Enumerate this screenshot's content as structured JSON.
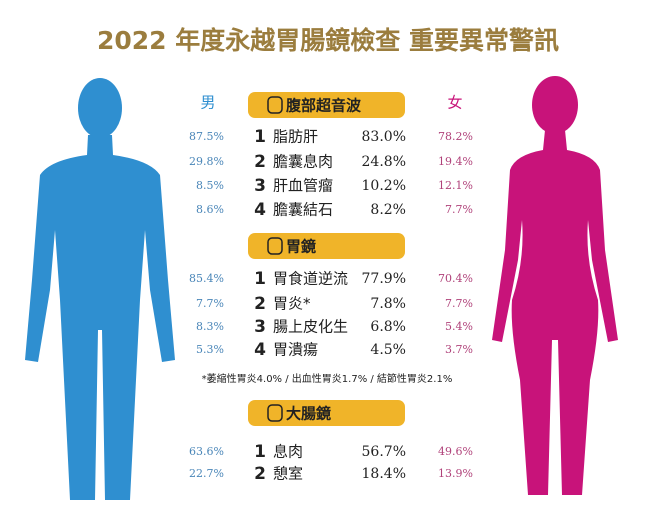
{
  "title": "2022 年度永越胃腸鏡檢查 重要異常警訊",
  "male_label": "男",
  "female_label": "女",
  "sections": [
    {
      "title": "腹部超音波",
      "rows": [
        {
          "rank": "1",
          "name": "脂肪肝",
          "total": "83.0%",
          "male": "87.5%",
          "female": "78.2%"
        },
        {
          "rank": "2",
          "name": "膽囊息肉",
          "total": "24.8%",
          "male": "29.8%",
          "female": "19.4%"
        },
        {
          "rank": "3",
          "name": "肝血管瘤",
          "total": "10.2%",
          "male": "8.5%",
          "female": "12.1%"
        },
        {
          "rank": "4",
          "name": "膽囊結石",
          "total": "8.2%",
          "male": "8.6%",
          "female": "7.7%"
        }
      ]
    },
    {
      "title": "胃鏡",
      "rows": [
        {
          "rank": "1",
          "name": "胃食道逆流",
          "total": "77.9%",
          "male": "85.4%",
          "female": "70.4%"
        },
        {
          "rank": "2",
          "name": "胃炎*",
          "total": "7.8%",
          "male": "7.7%",
          "female": "7.7%"
        },
        {
          "rank": "3",
          "name": "腸上皮化生",
          "total": "6.8%",
          "male": "8.3%",
          "female": "5.4%"
        },
        {
          "rank": "4",
          "name": "胃潰瘍",
          "total": "4.5%",
          "male": "5.3%",
          "female": "3.7%"
        }
      ],
      "note": "*萎縮性胃炎4.0% / 出血性胃炎1.7% / 結節性胃炎2.1%"
    },
    {
      "title": "大腸鏡",
      "rows": [
        {
          "rank": "1",
          "name": "息肉",
          "total": "56.7%",
          "male": "63.6%",
          "female": "49.6%"
        },
        {
          "rank": "2",
          "name": "憩室",
          "total": "18.4%",
          "male": "22.7%",
          "female": "13.9%"
        }
      ]
    }
  ]
}
